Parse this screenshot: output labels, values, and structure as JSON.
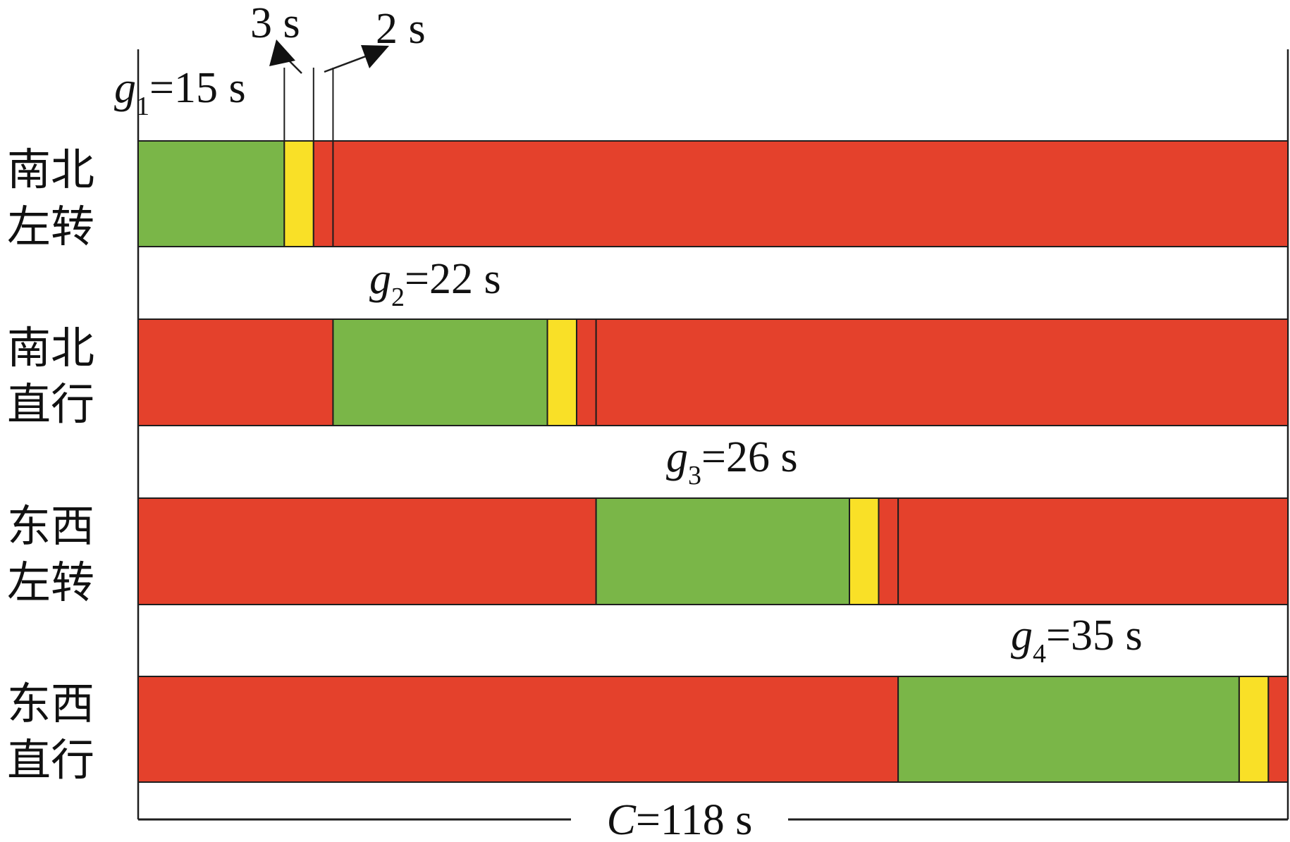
{
  "chart_data": {
    "type": "bar",
    "cycle": {
      "prefix": "C",
      "text": "=118 s",
      "seconds": 118
    },
    "yellow_seconds": 3,
    "all_red_seconds": 2,
    "yellow_label": "3 s",
    "all_red_label": "2 s",
    "colors": {
      "green": "#7ab648",
      "yellow": "#f9e027",
      "red": "#e4412c",
      "outline": "#1e1e1e"
    },
    "phases": [
      {
        "label_top": "南北",
        "label_bottom": "左转",
        "green_symbol": "g",
        "green_index": "1",
        "green_text": "=15 s",
        "green_start": 0,
        "green": 15
      },
      {
        "label_top": "南北",
        "label_bottom": "直行",
        "green_symbol": "g",
        "green_index": "2",
        "green_text": "=22 s",
        "green_start": 20,
        "green": 22
      },
      {
        "label_top": "东西",
        "label_bottom": "左转",
        "green_symbol": "g",
        "green_index": "3",
        "green_text": "=26 s",
        "green_start": 47,
        "green": 26
      },
      {
        "label_top": "东西",
        "label_bottom": "直行",
        "green_symbol": "g",
        "green_index": "4",
        "green_text": "=35 s",
        "green_start": 78,
        "green": 35
      }
    ]
  }
}
